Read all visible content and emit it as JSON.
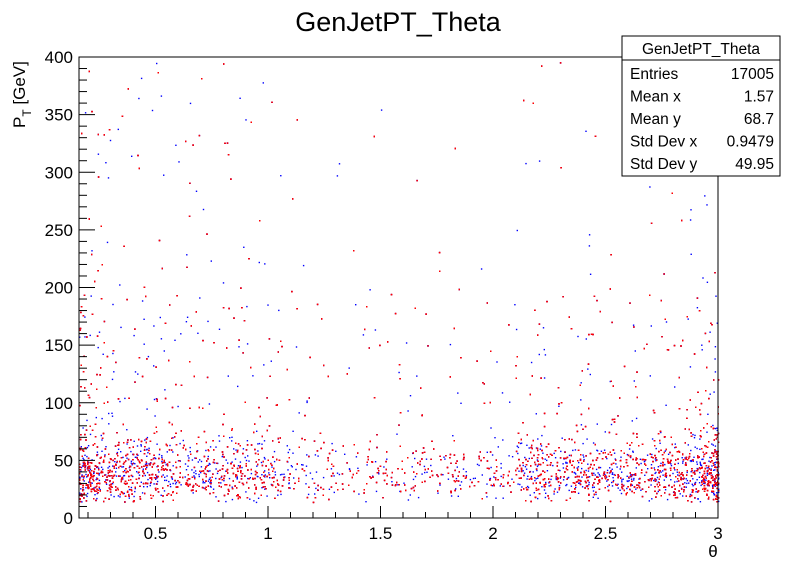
{
  "chart_data": {
    "type": "scatter",
    "title": "GenJetPT_Theta",
    "xlabel": "θ",
    "ylabel_main": "P",
    "ylabel_sub": "T",
    "ylabel_unit": " [GeV]",
    "xlim": [
      0.16,
      3.0
    ],
    "ylim": [
      0,
      400
    ],
    "xticks": [
      0.5,
      1,
      1.5,
      2,
      2.5,
      3
    ],
    "xtick_labels": [
      "0.5",
      "1",
      "1.5",
      "2",
      "2.5",
      "3"
    ],
    "yticks": [
      0,
      50,
      100,
      150,
      200,
      250,
      300,
      350,
      400
    ],
    "ytick_labels": [
      "0",
      "50",
      "100",
      "150",
      "200",
      "250",
      "300",
      "350",
      "400"
    ],
    "grid": false,
    "series": [
      {
        "color": "#0000ff"
      },
      {
        "color": "#ff0000"
      }
    ],
    "points_per_series": 4500,
    "stats": {
      "name": "GenJetPT_Theta",
      "rows": [
        {
          "label": "Entries",
          "value": "17005"
        },
        {
          "label": "Mean x",
          "value": "1.57"
        },
        {
          "label": "Mean y",
          "value": "68.7"
        },
        {
          "label": "Std Dev x",
          "value": "0.9479"
        },
        {
          "label": "Std Dev y",
          "value": "49.95"
        }
      ]
    }
  }
}
